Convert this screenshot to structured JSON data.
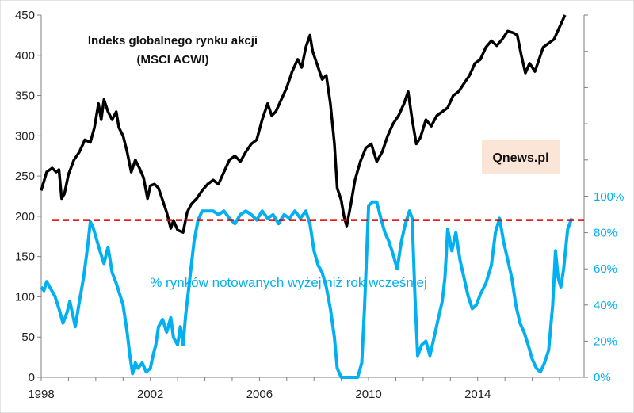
{
  "chart_data": {
    "type": "line",
    "title_lines": [
      "Indeks globalnego rynku akcji",
      "(MSCI ACWI)"
    ],
    "series_label": "% rynków notowanych wyżej niż rok wcześniej",
    "badge": "Qnews.pl",
    "x_ticks": [
      "1998",
      "2002",
      "2006",
      "2010",
      "2014"
    ],
    "x_tick_values": [
      1998,
      2002,
      2006,
      2010,
      2014
    ],
    "xlim": [
      1998,
      2017.9
    ],
    "y_left_ticks": [
      "0",
      "50",
      "100",
      "150",
      "200",
      "250",
      "300",
      "350",
      "400",
      "450"
    ],
    "y_left_lim": [
      0,
      450
    ],
    "y_right_ticks": [
      "0%",
      "20%",
      "40%",
      "60%",
      "80%",
      "100%"
    ],
    "y_right_lim": [
      0,
      100
    ],
    "threshold_percent": 87,
    "colors": {
      "index": "#000000",
      "percent": "#00b0f0",
      "threshold": "#e00000",
      "badge_bg": "#fbe5d6"
    },
    "series": [
      {
        "name": "MSCI ACWI",
        "axis": "left",
        "points": [
          [
            1998.0,
            232
          ],
          [
            1998.2,
            255
          ],
          [
            1998.4,
            260
          ],
          [
            1998.55,
            255
          ],
          [
            1998.65,
            258
          ],
          [
            1998.75,
            222
          ],
          [
            1998.85,
            228
          ],
          [
            1999.0,
            252
          ],
          [
            1999.2,
            270
          ],
          [
            1999.4,
            280
          ],
          [
            1999.6,
            295
          ],
          [
            1999.8,
            292
          ],
          [
            1999.95,
            310
          ],
          [
            2000.1,
            340
          ],
          [
            2000.2,
            320
          ],
          [
            2000.3,
            345
          ],
          [
            2000.45,
            330
          ],
          [
            2000.6,
            320
          ],
          [
            2000.75,
            330
          ],
          [
            2000.85,
            310
          ],
          [
            2001.0,
            300
          ],
          [
            2001.15,
            280
          ],
          [
            2001.3,
            255
          ],
          [
            2001.45,
            270
          ],
          [
            2001.6,
            260
          ],
          [
            2001.75,
            248
          ],
          [
            2001.9,
            222
          ],
          [
            2002.0,
            238
          ],
          [
            2002.15,
            240
          ],
          [
            2002.3,
            235
          ],
          [
            2002.45,
            220
          ],
          [
            2002.6,
            205
          ],
          [
            2002.75,
            185
          ],
          [
            2002.85,
            195
          ],
          [
            2003.0,
            183
          ],
          [
            2003.2,
            180
          ],
          [
            2003.35,
            205
          ],
          [
            2003.5,
            215
          ],
          [
            2003.7,
            222
          ],
          [
            2003.9,
            232
          ],
          [
            2004.1,
            240
          ],
          [
            2004.3,
            245
          ],
          [
            2004.5,
            240
          ],
          [
            2004.7,
            255
          ],
          [
            2004.9,
            270
          ],
          [
            2005.1,
            275
          ],
          [
            2005.3,
            268
          ],
          [
            2005.5,
            280
          ],
          [
            2005.7,
            290
          ],
          [
            2005.9,
            295
          ],
          [
            2006.1,
            320
          ],
          [
            2006.3,
            340
          ],
          [
            2006.45,
            325
          ],
          [
            2006.6,
            330
          ],
          [
            2006.8,
            345
          ],
          [
            2007.0,
            360
          ],
          [
            2007.2,
            380
          ],
          [
            2007.4,
            395
          ],
          [
            2007.55,
            385
          ],
          [
            2007.7,
            410
          ],
          [
            2007.85,
            425
          ],
          [
            2007.95,
            405
          ],
          [
            2008.1,
            390
          ],
          [
            2008.3,
            370
          ],
          [
            2008.45,
            375
          ],
          [
            2008.6,
            340
          ],
          [
            2008.75,
            290
          ],
          [
            2008.85,
            235
          ],
          [
            2009.0,
            220
          ],
          [
            2009.1,
            200
          ],
          [
            2009.2,
            188
          ],
          [
            2009.35,
            215
          ],
          [
            2009.5,
            245
          ],
          [
            2009.7,
            268
          ],
          [
            2009.9,
            285
          ],
          [
            2010.1,
            290
          ],
          [
            2010.3,
            268
          ],
          [
            2010.5,
            280
          ],
          [
            2010.7,
            300
          ],
          [
            2010.9,
            315
          ],
          [
            2011.1,
            325
          ],
          [
            2011.3,
            340
          ],
          [
            2011.45,
            355
          ],
          [
            2011.6,
            320
          ],
          [
            2011.75,
            290
          ],
          [
            2011.9,
            298
          ],
          [
            2012.1,
            320
          ],
          [
            2012.3,
            312
          ],
          [
            2012.5,
            325
          ],
          [
            2012.7,
            330
          ],
          [
            2012.9,
            335
          ],
          [
            2013.1,
            350
          ],
          [
            2013.3,
            355
          ],
          [
            2013.5,
            365
          ],
          [
            2013.7,
            375
          ],
          [
            2013.9,
            390
          ],
          [
            2014.1,
            395
          ],
          [
            2014.3,
            410
          ],
          [
            2014.5,
            418
          ],
          [
            2014.7,
            412
          ],
          [
            2014.9,
            420
          ],
          [
            2015.1,
            430
          ],
          [
            2015.3,
            428
          ],
          [
            2015.45,
            425
          ],
          [
            2015.6,
            400
          ],
          [
            2015.75,
            378
          ],
          [
            2015.9,
            390
          ],
          [
            2016.1,
            380
          ],
          [
            2016.25,
            395
          ],
          [
            2016.4,
            410
          ],
          [
            2016.6,
            415
          ],
          [
            2016.8,
            420
          ],
          [
            2017.0,
            435
          ],
          [
            2017.2,
            450
          ]
        ]
      },
      {
        "name": "% rynków notowanych wyżej niż rok wcześniej",
        "axis": "right",
        "points": [
          [
            1998.0,
            50
          ],
          [
            1998.1,
            48
          ],
          [
            1998.2,
            53
          ],
          [
            1998.35,
            49
          ],
          [
            1998.5,
            45
          ],
          [
            1998.65,
            38
          ],
          [
            1998.8,
            30
          ],
          [
            1998.95,
            36
          ],
          [
            1999.05,
            42
          ],
          [
            1999.15,
            35
          ],
          [
            1999.25,
            28
          ],
          [
            1999.4,
            42
          ],
          [
            1999.55,
            55
          ],
          [
            1999.7,
            72
          ],
          [
            1999.8,
            86
          ],
          [
            1999.9,
            83
          ],
          [
            2000.0,
            78
          ],
          [
            2000.15,
            70
          ],
          [
            2000.3,
            63
          ],
          [
            2000.45,
            72
          ],
          [
            2000.6,
            58
          ],
          [
            2000.75,
            52
          ],
          [
            2000.9,
            45
          ],
          [
            2001.0,
            40
          ],
          [
            2001.15,
            25
          ],
          [
            2001.25,
            12
          ],
          [
            2001.35,
            2
          ],
          [
            2001.45,
            8
          ],
          [
            2001.55,
            5
          ],
          [
            2001.7,
            8
          ],
          [
            2001.85,
            3
          ],
          [
            2002.0,
            5
          ],
          [
            2002.1,
            12
          ],
          [
            2002.2,
            18
          ],
          [
            2002.3,
            28
          ],
          [
            2002.45,
            32
          ],
          [
            2002.6,
            25
          ],
          [
            2002.75,
            33
          ],
          [
            2002.85,
            22
          ],
          [
            2003.0,
            18
          ],
          [
            2003.1,
            28
          ],
          [
            2003.2,
            18
          ],
          [
            2003.3,
            35
          ],
          [
            2003.45,
            55
          ],
          [
            2003.6,
            75
          ],
          [
            2003.75,
            87
          ],
          [
            2003.9,
            92
          ],
          [
            2004.1,
            92
          ],
          [
            2004.3,
            92
          ],
          [
            2004.5,
            90
          ],
          [
            2004.7,
            92
          ],
          [
            2004.9,
            88
          ],
          [
            2005.1,
            85
          ],
          [
            2005.3,
            90
          ],
          [
            2005.5,
            92
          ],
          [
            2005.7,
            90
          ],
          [
            2005.9,
            87
          ],
          [
            2006.1,
            92
          ],
          [
            2006.3,
            88
          ],
          [
            2006.5,
            90
          ],
          [
            2006.7,
            85
          ],
          [
            2006.9,
            90
          ],
          [
            2007.1,
            88
          ],
          [
            2007.3,
            92
          ],
          [
            2007.5,
            88
          ],
          [
            2007.7,
            92
          ],
          [
            2007.85,
            85
          ],
          [
            2008.0,
            70
          ],
          [
            2008.15,
            62
          ],
          [
            2008.3,
            58
          ],
          [
            2008.45,
            50
          ],
          [
            2008.6,
            38
          ],
          [
            2008.75,
            22
          ],
          [
            2008.85,
            5
          ],
          [
            2009.0,
            0
          ],
          [
            2009.2,
            0
          ],
          [
            2009.4,
            0
          ],
          [
            2009.6,
            0
          ],
          [
            2009.75,
            8
          ],
          [
            2009.85,
            38
          ],
          [
            2010.0,
            95
          ],
          [
            2010.15,
            97
          ],
          [
            2010.3,
            97
          ],
          [
            2010.45,
            88
          ],
          [
            2010.6,
            80
          ],
          [
            2010.75,
            75
          ],
          [
            2010.9,
            68
          ],
          [
            2011.05,
            60
          ],
          [
            2011.2,
            75
          ],
          [
            2011.35,
            85
          ],
          [
            2011.5,
            92
          ],
          [
            2011.6,
            88
          ],
          [
            2011.7,
            45
          ],
          [
            2011.8,
            12
          ],
          [
            2011.95,
            18
          ],
          [
            2012.1,
            20
          ],
          [
            2012.25,
            12
          ],
          [
            2012.4,
            22
          ],
          [
            2012.55,
            32
          ],
          [
            2012.7,
            42
          ],
          [
            2012.8,
            55
          ],
          [
            2012.9,
            82
          ],
          [
            2013.05,
            70
          ],
          [
            2013.2,
            80
          ],
          [
            2013.35,
            65
          ],
          [
            2013.5,
            55
          ],
          [
            2013.65,
            45
          ],
          [
            2013.8,
            38
          ],
          [
            2013.95,
            40
          ],
          [
            2014.1,
            46
          ],
          [
            2014.3,
            52
          ],
          [
            2014.5,
            62
          ],
          [
            2014.65,
            80
          ],
          [
            2014.8,
            88
          ],
          [
            2014.95,
            75
          ],
          [
            2015.1,
            65
          ],
          [
            2015.25,
            55
          ],
          [
            2015.4,
            40
          ],
          [
            2015.55,
            30
          ],
          [
            2015.7,
            25
          ],
          [
            2015.85,
            18
          ],
          [
            2016.0,
            10
          ],
          [
            2016.15,
            5
          ],
          [
            2016.3,
            3
          ],
          [
            2016.45,
            8
          ],
          [
            2016.6,
            15
          ],
          [
            2016.75,
            40
          ],
          [
            2016.85,
            70
          ],
          [
            2016.95,
            55
          ],
          [
            2017.05,
            50
          ],
          [
            2017.15,
            60
          ],
          [
            2017.3,
            82
          ],
          [
            2017.45,
            88
          ]
        ]
      }
    ]
  }
}
